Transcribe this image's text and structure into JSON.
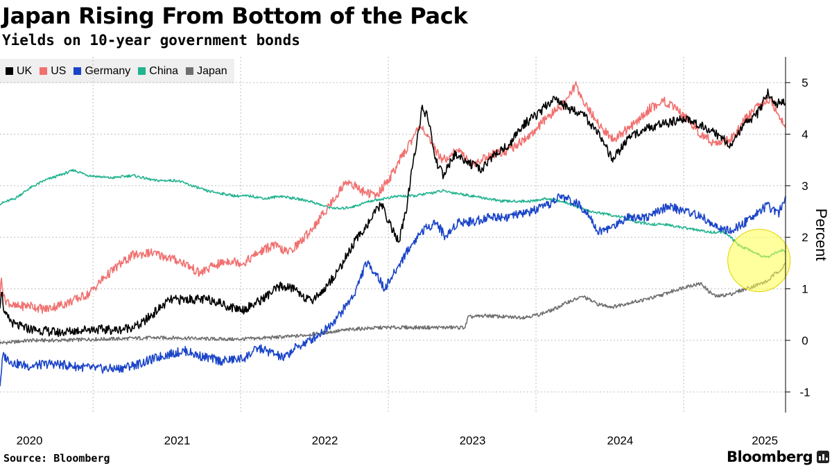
{
  "header": {
    "title": "Japan Rising From Bottom of the Pack",
    "subtitle": "Yields on 10-year government bonds"
  },
  "footer": {
    "source": "Source: Bloomberg",
    "brand": "Bloomberg"
  },
  "colors": {
    "uk": "#000000",
    "us": "#f0706f",
    "germany": "#1a44c8",
    "china": "#22b38f",
    "japan": "#6e6e6e",
    "highlight": "#ffff4d"
  },
  "chart_data": {
    "type": "line",
    "title": "Japan Rising From Bottom of the Pack",
    "subtitle": "Yields on 10-year government bonds",
    "xlabel": "",
    "ylabel": "Percent",
    "y_axis_side": "right",
    "ylim": [
      -1.4,
      5.5
    ],
    "xlim": [
      2019.8,
      2025.12
    ],
    "y_ticks": [
      -1,
      0,
      1,
      2,
      3,
      4,
      5
    ],
    "x_ticks": [
      {
        "label": "2020",
        "x": 2020.0
      },
      {
        "label": "2021",
        "x": 2021.0
      },
      {
        "label": "2022",
        "x": 2022.0
      },
      {
        "label": "2023",
        "x": 2023.0
      },
      {
        "label": "2024",
        "x": 2024.0
      },
      {
        "label": "2025",
        "x": 2025.0
      }
    ],
    "grid": true,
    "legend_position": "top-left",
    "highlight": {
      "shape": "circle",
      "x": 2024.94,
      "y": 1.55,
      "description_color": "yellow"
    },
    "series": [
      {
        "name": "UK",
        "key": "uk",
        "points": [
          [
            2019.8,
            0.7
          ],
          [
            2019.81,
            1.0
          ],
          [
            2019.83,
            0.5
          ],
          [
            2019.9,
            0.3
          ],
          [
            2020.0,
            0.22
          ],
          [
            2020.2,
            0.15
          ],
          [
            2020.4,
            0.22
          ],
          [
            2020.6,
            0.2
          ],
          [
            2020.75,
            0.3
          ],
          [
            2020.85,
            0.55
          ],
          [
            2020.95,
            0.78
          ],
          [
            2021.1,
            0.8
          ],
          [
            2021.25,
            0.78
          ],
          [
            2021.35,
            0.65
          ],
          [
            2021.45,
            0.6
          ],
          [
            2021.55,
            0.75
          ],
          [
            2021.7,
            1.05
          ],
          [
            2021.8,
            1.0
          ],
          [
            2021.9,
            0.75
          ],
          [
            2022.0,
            1.0
          ],
          [
            2022.1,
            1.4
          ],
          [
            2022.2,
            1.9
          ],
          [
            2022.3,
            2.3
          ],
          [
            2022.38,
            2.65
          ],
          [
            2022.45,
            2.2
          ],
          [
            2022.5,
            1.9
          ],
          [
            2022.55,
            2.5
          ],
          [
            2022.6,
            3.5
          ],
          [
            2022.66,
            4.5
          ],
          [
            2022.7,
            4.3
          ],
          [
            2022.75,
            3.5
          ],
          [
            2022.8,
            3.2
          ],
          [
            2022.88,
            3.6
          ],
          [
            2022.95,
            3.5
          ],
          [
            2023.05,
            3.3
          ],
          [
            2023.15,
            3.6
          ],
          [
            2023.25,
            3.8
          ],
          [
            2023.35,
            4.2
          ],
          [
            2023.45,
            4.4
          ],
          [
            2023.55,
            4.7
          ],
          [
            2023.65,
            4.5
          ],
          [
            2023.75,
            4.4
          ],
          [
            2023.85,
            4.0
          ],
          [
            2023.95,
            3.5
          ],
          [
            2024.05,
            3.9
          ],
          [
            2024.15,
            4.1
          ],
          [
            2024.3,
            4.2
          ],
          [
            2024.45,
            4.3
          ],
          [
            2024.6,
            4.1
          ],
          [
            2024.7,
            3.9
          ],
          [
            2024.75,
            3.8
          ],
          [
            2024.85,
            4.2
          ],
          [
            2024.93,
            4.4
          ],
          [
            2025.0,
            4.8
          ],
          [
            2025.05,
            4.6
          ],
          [
            2025.12,
            4.6
          ]
        ]
      },
      {
        "name": "US",
        "key": "us",
        "points": [
          [
            2019.8,
            0.9
          ],
          [
            2019.81,
            1.2
          ],
          [
            2019.83,
            0.8
          ],
          [
            2019.9,
            0.65
          ],
          [
            2020.0,
            0.68
          ],
          [
            2020.1,
            0.6
          ],
          [
            2020.25,
            0.72
          ],
          [
            2020.4,
            0.9
          ],
          [
            2020.5,
            1.2
          ],
          [
            2020.6,
            1.45
          ],
          [
            2020.7,
            1.65
          ],
          [
            2020.82,
            1.7
          ],
          [
            2020.95,
            1.6
          ],
          [
            2021.05,
            1.5
          ],
          [
            2021.15,
            1.3
          ],
          [
            2021.25,
            1.45
          ],
          [
            2021.35,
            1.55
          ],
          [
            2021.45,
            1.5
          ],
          [
            2021.55,
            1.7
          ],
          [
            2021.65,
            1.85
          ],
          [
            2021.75,
            1.7
          ],
          [
            2021.85,
            1.95
          ],
          [
            2021.95,
            2.3
          ],
          [
            2022.05,
            2.7
          ],
          [
            2022.15,
            3.1
          ],
          [
            2022.25,
            2.9
          ],
          [
            2022.35,
            2.8
          ],
          [
            2022.45,
            3.2
          ],
          [
            2022.55,
            3.7
          ],
          [
            2022.65,
            4.2
          ],
          [
            2022.72,
            3.8
          ],
          [
            2022.8,
            3.5
          ],
          [
            2022.9,
            3.7
          ],
          [
            2023.0,
            3.4
          ],
          [
            2023.12,
            3.6
          ],
          [
            2023.25,
            3.7
          ],
          [
            2023.4,
            4.0
          ],
          [
            2023.5,
            4.3
          ],
          [
            2023.62,
            4.6
          ],
          [
            2023.7,
            4.95
          ],
          [
            2023.78,
            4.5
          ],
          [
            2023.88,
            4.1
          ],
          [
            2023.95,
            3.9
          ],
          [
            2024.1,
            4.2
          ],
          [
            2024.2,
            4.5
          ],
          [
            2024.3,
            4.65
          ],
          [
            2024.45,
            4.3
          ],
          [
            2024.55,
            4.0
          ],
          [
            2024.65,
            3.8
          ],
          [
            2024.75,
            3.9
          ],
          [
            2024.85,
            4.3
          ],
          [
            2024.95,
            4.6
          ],
          [
            2025.02,
            4.7
          ],
          [
            2025.08,
            4.3
          ],
          [
            2025.12,
            4.2
          ]
        ]
      },
      {
        "name": "Germany",
        "key": "germany",
        "points": [
          [
            2019.8,
            -0.85
          ],
          [
            2019.82,
            -0.3
          ],
          [
            2019.9,
            -0.45
          ],
          [
            2020.0,
            -0.5
          ],
          [
            2020.15,
            -0.45
          ],
          [
            2020.3,
            -0.5
          ],
          [
            2020.45,
            -0.55
          ],
          [
            2020.6,
            -0.55
          ],
          [
            2020.75,
            -0.45
          ],
          [
            2020.9,
            -0.3
          ],
          [
            2021.05,
            -0.2
          ],
          [
            2021.15,
            -0.3
          ],
          [
            2021.3,
            -0.4
          ],
          [
            2021.45,
            -0.35
          ],
          [
            2021.55,
            -0.15
          ],
          [
            2021.65,
            -0.25
          ],
          [
            2021.72,
            -0.35
          ],
          [
            2021.8,
            -0.15
          ],
          [
            2021.9,
            0.0
          ],
          [
            2022.0,
            0.2
          ],
          [
            2022.1,
            0.5
          ],
          [
            2022.2,
            0.9
          ],
          [
            2022.28,
            1.5
          ],
          [
            2022.35,
            1.3
          ],
          [
            2022.4,
            1.0
          ],
          [
            2022.45,
            1.2
          ],
          [
            2022.55,
            1.7
          ],
          [
            2022.65,
            2.1
          ],
          [
            2022.75,
            2.3
          ],
          [
            2022.82,
            2.0
          ],
          [
            2022.9,
            2.3
          ],
          [
            2023.0,
            2.3
          ],
          [
            2023.12,
            2.4
          ],
          [
            2023.25,
            2.4
          ],
          [
            2023.4,
            2.5
          ],
          [
            2023.5,
            2.6
          ],
          [
            2023.6,
            2.8
          ],
          [
            2023.68,
            2.7
          ],
          [
            2023.78,
            2.5
          ],
          [
            2023.85,
            2.1
          ],
          [
            2023.95,
            2.2
          ],
          [
            2024.05,
            2.4
          ],
          [
            2024.2,
            2.4
          ],
          [
            2024.32,
            2.6
          ],
          [
            2024.45,
            2.5
          ],
          [
            2024.55,
            2.4
          ],
          [
            2024.65,
            2.2
          ],
          [
            2024.75,
            2.1
          ],
          [
            2024.85,
            2.3
          ],
          [
            2024.93,
            2.5
          ],
          [
            2025.0,
            2.6
          ],
          [
            2025.07,
            2.45
          ],
          [
            2025.12,
            2.8
          ]
        ]
      },
      {
        "name": "China",
        "key": "china",
        "points": [
          [
            2019.8,
            2.65
          ],
          [
            2019.9,
            2.75
          ],
          [
            2020.0,
            2.95
          ],
          [
            2020.1,
            3.1
          ],
          [
            2020.2,
            3.2
          ],
          [
            2020.3,
            3.3
          ],
          [
            2020.4,
            3.2
          ],
          [
            2020.55,
            3.15
          ],
          [
            2020.7,
            3.2
          ],
          [
            2020.85,
            3.1
          ],
          [
            2021.0,
            3.1
          ],
          [
            2021.1,
            3.0
          ],
          [
            2021.2,
            2.9
          ],
          [
            2021.3,
            2.85
          ],
          [
            2021.4,
            2.8
          ],
          [
            2021.5,
            2.8
          ],
          [
            2021.6,
            2.75
          ],
          [
            2021.7,
            2.8
          ],
          [
            2021.8,
            2.75
          ],
          [
            2021.9,
            2.7
          ],
          [
            2022.0,
            2.6
          ],
          [
            2022.1,
            2.55
          ],
          [
            2022.2,
            2.6
          ],
          [
            2022.3,
            2.7
          ],
          [
            2022.4,
            2.75
          ],
          [
            2022.5,
            2.8
          ],
          [
            2022.6,
            2.8
          ],
          [
            2022.7,
            2.85
          ],
          [
            2022.8,
            2.9
          ],
          [
            2022.9,
            2.85
          ],
          [
            2023.0,
            2.8
          ],
          [
            2023.1,
            2.75
          ],
          [
            2023.2,
            2.7
          ],
          [
            2023.3,
            2.7
          ],
          [
            2023.4,
            2.7
          ],
          [
            2023.5,
            2.75
          ],
          [
            2023.6,
            2.7
          ],
          [
            2023.7,
            2.6
          ],
          [
            2023.8,
            2.5
          ],
          [
            2023.9,
            2.45
          ],
          [
            2024.0,
            2.4
          ],
          [
            2024.1,
            2.3
          ],
          [
            2024.2,
            2.25
          ],
          [
            2024.3,
            2.25
          ],
          [
            2024.4,
            2.2
          ],
          [
            2024.5,
            2.15
          ],
          [
            2024.6,
            2.1
          ],
          [
            2024.7,
            2.1
          ],
          [
            2024.75,
            2.0
          ],
          [
            2024.8,
            1.85
          ],
          [
            2024.88,
            1.75
          ],
          [
            2024.95,
            1.65
          ],
          [
            2025.0,
            1.62
          ],
          [
            2025.05,
            1.7
          ],
          [
            2025.1,
            1.75
          ],
          [
            2025.12,
            1.7
          ]
        ]
      },
      {
        "name": "Japan",
        "key": "japan",
        "points": [
          [
            2019.8,
            -0.05
          ],
          [
            2019.9,
            -0.03
          ],
          [
            2020.0,
            0.0
          ],
          [
            2020.2,
            0.0
          ],
          [
            2020.4,
            0.02
          ],
          [
            2020.6,
            0.03
          ],
          [
            2020.8,
            0.05
          ],
          [
            2021.0,
            0.05
          ],
          [
            2021.2,
            0.03
          ],
          [
            2021.4,
            0.02
          ],
          [
            2021.6,
            0.05
          ],
          [
            2021.8,
            0.08
          ],
          [
            2022.0,
            0.15
          ],
          [
            2022.2,
            0.22
          ],
          [
            2022.4,
            0.25
          ],
          [
            2022.6,
            0.25
          ],
          [
            2022.8,
            0.25
          ],
          [
            2022.95,
            0.25
          ],
          [
            2022.97,
            0.45
          ],
          [
            2023.1,
            0.48
          ],
          [
            2023.25,
            0.45
          ],
          [
            2023.35,
            0.45
          ],
          [
            2023.45,
            0.5
          ],
          [
            2023.55,
            0.6
          ],
          [
            2023.65,
            0.75
          ],
          [
            2023.75,
            0.85
          ],
          [
            2023.85,
            0.7
          ],
          [
            2023.95,
            0.65
          ],
          [
            2024.05,
            0.72
          ],
          [
            2024.15,
            0.78
          ],
          [
            2024.25,
            0.85
          ],
          [
            2024.35,
            0.95
          ],
          [
            2024.45,
            1.05
          ],
          [
            2024.55,
            1.1
          ],
          [
            2024.6,
            0.95
          ],
          [
            2024.65,
            0.85
          ],
          [
            2024.75,
            0.9
          ],
          [
            2024.85,
            1.0
          ],
          [
            2024.95,
            1.1
          ],
          [
            2025.0,
            1.15
          ],
          [
            2025.05,
            1.3
          ],
          [
            2025.1,
            1.4
          ],
          [
            2025.12,
            1.5
          ]
        ]
      }
    ]
  }
}
